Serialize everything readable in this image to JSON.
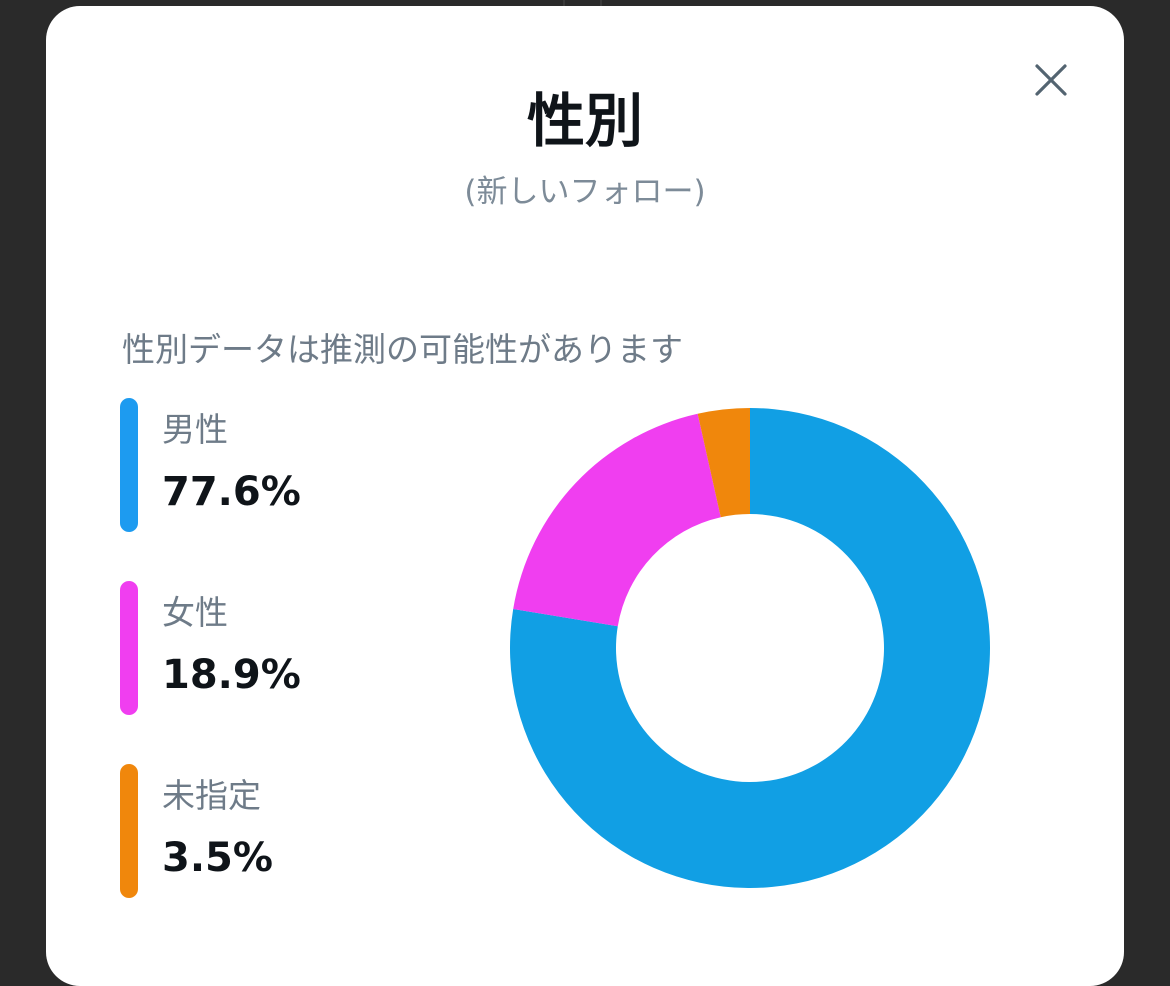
{
  "modal": {
    "title": "性別",
    "subtitle": "(新しいフォロー)",
    "note": "性別データは推測の可能性があります",
    "close_icon": "close-icon"
  },
  "legend": [
    {
      "label": "男性",
      "value_text": "77.6%",
      "color": "#1d9bf0"
    },
    {
      "label": "女性",
      "value_text": "18.9%",
      "color": "#f03ef0"
    },
    {
      "label": "未指定",
      "value_text": "3.5%",
      "color": "#f0870c"
    }
  ],
  "chart_data": {
    "type": "pie",
    "donut": true,
    "categories": [
      "男性",
      "女性",
      "未指定"
    ],
    "values": [
      77.6,
      18.9,
      3.5
    ],
    "colors": [
      "#119fe4",
      "#f03ef0",
      "#f0870c"
    ],
    "title": "性別",
    "subtitle": "(新しいフォロー)",
    "legend_position": "left"
  }
}
